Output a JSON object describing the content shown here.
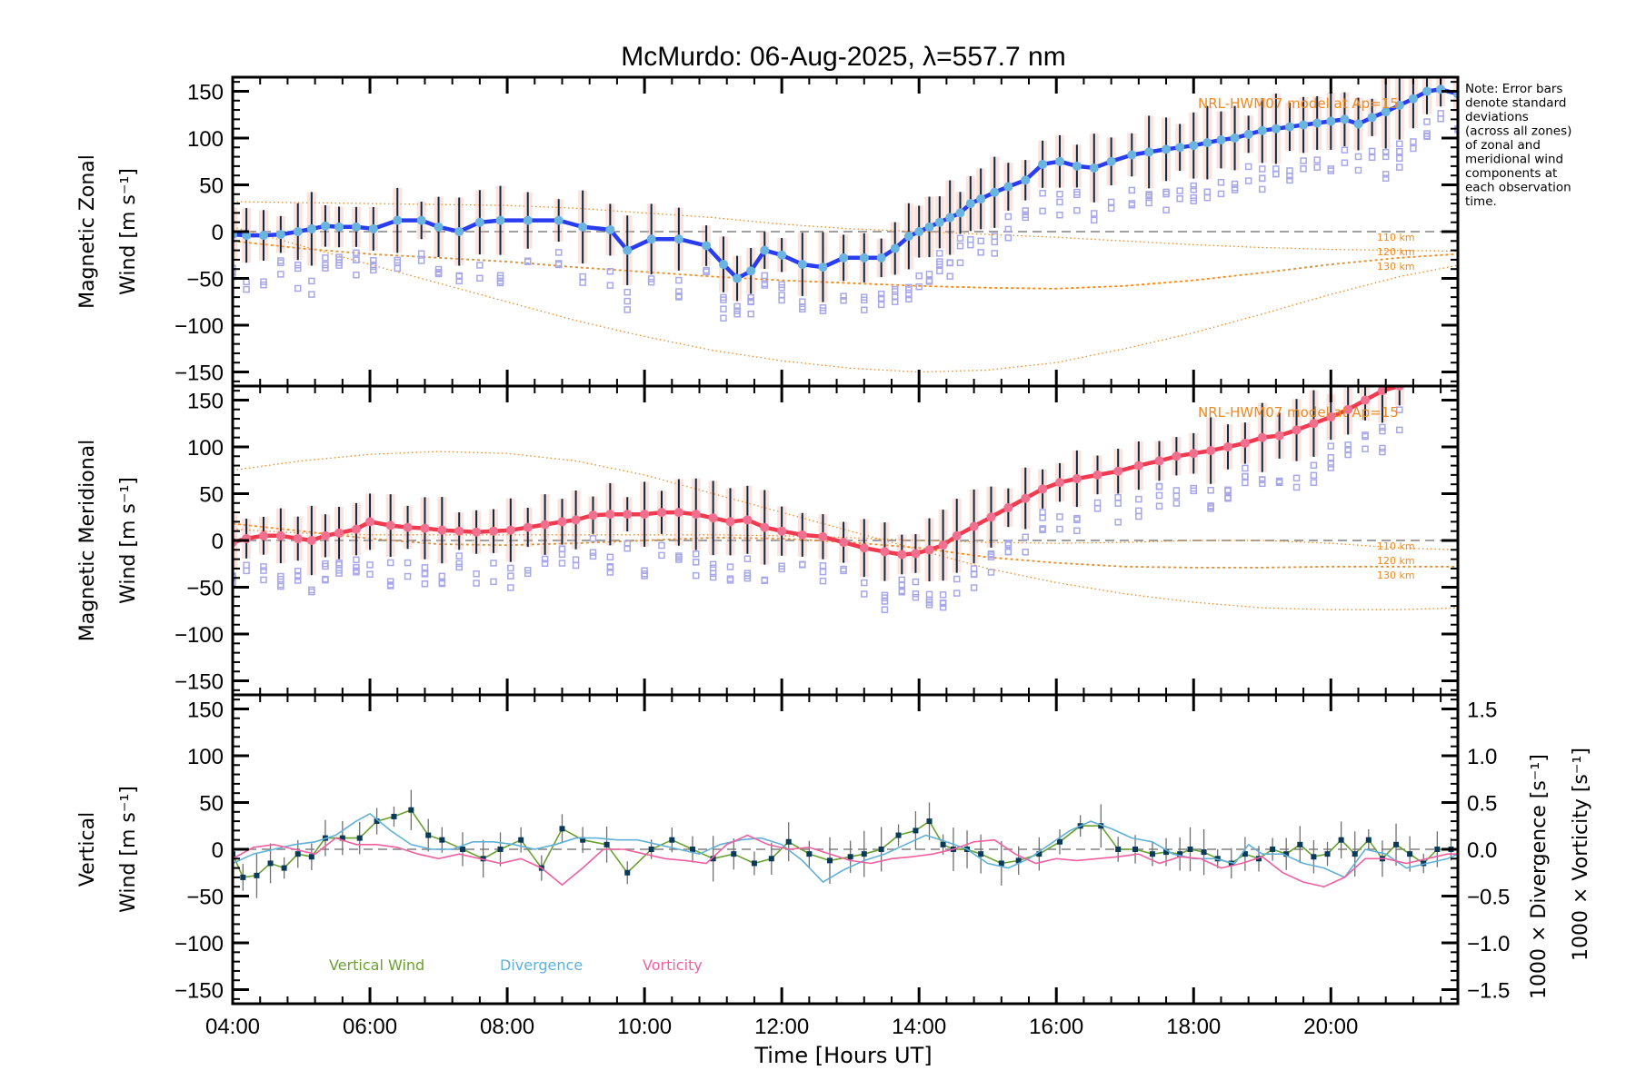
{
  "chart_data": {
    "type": "line",
    "title": "McMurdo: 06-Aug-2025, λ=557.7 nm",
    "xlabel": "Time [Hours UT]",
    "xlim": [
      4.0,
      21.85
    ],
    "xticks": [
      4,
      6,
      8,
      10,
      12,
      14,
      16,
      18,
      20
    ],
    "xtick_labels": [
      "04:00",
      "06:00",
      "08:00",
      "10:00",
      "12:00",
      "14:00",
      "16:00",
      "18:00",
      "20:00"
    ],
    "note": [
      "Note: Error bars",
      "denote standard",
      "deviations",
      "(across all zones)",
      "of zonal and",
      "meridional wind",
      "components at",
      "each observation",
      "time."
    ],
    "colors": {
      "zonal": "#2a3cf0",
      "zonal_marker": "#6ab4e0",
      "meridional": "#f03a50",
      "meridional_marker": "#f07090",
      "model": "#f08a20",
      "zone_points": "#a8a8e8",
      "errbar": "#0a2a40",
      "vertical": "#6aa030",
      "divergence": "#60b0d8",
      "vorticity": "#f060a0",
      "zero_line": "#808080"
    },
    "panels": [
      {
        "id": "zonal",
        "ylabel_line1": "Magnetic Zonal",
        "ylabel_line2": "Wind [m s⁻¹]",
        "ylim": [
          -165,
          165
        ],
        "yticks": [
          -150,
          -100,
          -50,
          0,
          50,
          100,
          150
        ],
        "ytick_labels": [
          "−150",
          "−100",
          "−50",
          "0",
          "50",
          "100",
          "150"
        ],
        "model_label": "NRL-HWM07 model at Ap=15",
        "model_altitudes": [
          "110 km",
          "120 km",
          "130 km"
        ],
        "model_curves": {
          "x": [
            4,
            5,
            6,
            7,
            8,
            9,
            10,
            11,
            12,
            13,
            14,
            15,
            16,
            17,
            18,
            19,
            20,
            21,
            21.85
          ],
          "110 km": [
            32,
            31,
            30,
            29,
            28,
            25,
            20,
            15,
            8,
            3,
            0,
            -3,
            -6,
            -10,
            -14,
            -17,
            -19,
            -20,
            -21
          ],
          "120 km": [
            -10,
            -18,
            -24,
            -28,
            -32,
            -38,
            -43,
            -48,
            -52,
            -55,
            -58,
            -60,
            -61,
            -58,
            -52,
            -44,
            -35,
            -28,
            -24
          ],
          "130 km": [
            5,
            -15,
            -35,
            -55,
            -75,
            -95,
            -112,
            -127,
            -138,
            -146,
            -150,
            -148,
            -140,
            -125,
            -108,
            -88,
            -67,
            -48,
            -36
          ]
        },
        "series": {
          "name": "Magnetic Zonal Wind",
          "x": [
            4.0,
            4.2,
            4.45,
            4.7,
            4.95,
            5.15,
            5.35,
            5.55,
            5.8,
            6.05,
            6.4,
            6.75,
            7.0,
            7.3,
            7.6,
            7.9,
            8.3,
            8.75,
            9.1,
            9.5,
            9.75,
            10.1,
            10.5,
            10.9,
            11.15,
            11.35,
            11.55,
            11.75,
            12.0,
            12.3,
            12.6,
            12.9,
            13.2,
            13.45,
            13.65,
            13.85,
            14.0,
            14.15,
            14.3,
            14.45,
            14.6,
            14.75,
            14.9,
            15.1,
            15.3,
            15.55,
            15.8,
            16.05,
            16.3,
            16.55,
            16.8,
            17.1,
            17.35,
            17.6,
            17.8,
            18.0,
            18.2,
            18.4,
            18.6,
            18.8,
            19.0,
            19.2,
            19.4,
            19.6,
            19.8,
            20.0,
            20.2,
            20.4,
            20.6,
            20.8,
            21.0,
            21.2,
            21.4,
            21.6,
            21.85
          ],
          "y": [
            -3,
            -4,
            -4,
            -3,
            0,
            3,
            6,
            5,
            5,
            3,
            12,
            12,
            5,
            0,
            10,
            12,
            12,
            12,
            5,
            2,
            -20,
            -8,
            -8,
            -15,
            -35,
            -50,
            -42,
            -20,
            -25,
            -35,
            -38,
            -28,
            -28,
            -28,
            -18,
            -5,
            0,
            5,
            10,
            15,
            20,
            30,
            35,
            42,
            48,
            55,
            72,
            75,
            70,
            68,
            75,
            82,
            85,
            88,
            90,
            92,
            95,
            98,
            100,
            104,
            108,
            110,
            112,
            114,
            116,
            118,
            120,
            115,
            122,
            128,
            135,
            142,
            150,
            152,
            147
          ]
        }
      },
      {
        "id": "meridional",
        "ylabel_line1": "Magnetic Meridional",
        "ylabel_line2": "Wind [m s⁻¹]",
        "ylim": [
          -165,
          165
        ],
        "yticks": [
          -150,
          -100,
          -50,
          0,
          50,
          100,
          150
        ],
        "ytick_labels": [
          "−150",
          "−100",
          "−50",
          "0",
          "50",
          "100",
          "150"
        ],
        "model_label": "NRL-HWM07 model at Ap=15",
        "model_altitudes": [
          "110 km",
          "120 km",
          "130 km"
        ],
        "model_curves": {
          "x": [
            4,
            5,
            6,
            7,
            8,
            9,
            10,
            11,
            12,
            13,
            14,
            15,
            16,
            17,
            18,
            19,
            20,
            21,
            21.85
          ],
          "110 km": [
            12,
            8,
            6,
            6,
            6,
            6,
            6,
            6,
            5,
            3,
            0,
            -2,
            -3,
            -2,
            0,
            0,
            -3,
            -8,
            -10
          ],
          "120 km": [
            18,
            10,
            2,
            -4,
            -5,
            -3,
            0,
            3,
            2,
            -2,
            -8,
            -18,
            -24,
            -28,
            -29,
            -29,
            -28,
            -28,
            -28
          ],
          "130 km": [
            75,
            85,
            92,
            95,
            93,
            85,
            70,
            50,
            30,
            10,
            -10,
            -30,
            -45,
            -57,
            -66,
            -72,
            -74,
            -74,
            -72
          ]
        },
        "series": {
          "name": "Magnetic Meridional Wind",
          "x": [
            4.0,
            4.2,
            4.45,
            4.7,
            4.95,
            5.15,
            5.35,
            5.55,
            5.8,
            6.0,
            6.3,
            6.55,
            6.8,
            7.05,
            7.3,
            7.55,
            7.8,
            8.05,
            8.3,
            8.55,
            8.8,
            9.0,
            9.25,
            9.5,
            9.75,
            10.0,
            10.25,
            10.5,
            10.75,
            11.0,
            11.25,
            11.5,
            11.75,
            12.0,
            12.3,
            12.6,
            12.9,
            13.2,
            13.5,
            13.75,
            13.95,
            14.15,
            14.35,
            14.55,
            14.8,
            15.05,
            15.3,
            15.55,
            15.8,
            16.05,
            16.3,
            16.6,
            16.9,
            17.2,
            17.5,
            17.75,
            18.0,
            18.25,
            18.5,
            18.75,
            19.0,
            19.25,
            19.5,
            19.75,
            20.0,
            20.25,
            20.5,
            20.75,
            21.0
          ],
          "y": [
            -2,
            2,
            5,
            5,
            2,
            0,
            5,
            8,
            12,
            20,
            16,
            14,
            13,
            11,
            10,
            9,
            10,
            11,
            14,
            17,
            20,
            22,
            27,
            28,
            28,
            28,
            30,
            30,
            28,
            24,
            20,
            22,
            14,
            10,
            6,
            4,
            -2,
            -8,
            -12,
            -15,
            -14,
            -10,
            -5,
            5,
            15,
            25,
            35,
            45,
            55,
            62,
            66,
            70,
            74,
            80,
            85,
            90,
            93,
            96,
            100,
            104,
            110,
            112,
            118,
            125,
            132,
            140,
            150,
            160,
            165
          ]
        }
      },
      {
        "id": "vertical",
        "ylabel_line1": "Vertical",
        "ylabel_line2": "Wind [m s⁻¹]",
        "ylim": [
          -165,
          165
        ],
        "yticks": [
          -150,
          -100,
          -50,
          0,
          50,
          100,
          150
        ],
        "ytick_labels": [
          "−150",
          "−100",
          "−50",
          "0",
          "50",
          "100",
          "150"
        ],
        "right_axis": {
          "ylim": [
            -1.65,
            1.65
          ],
          "yticks": [
            -1.5,
            -1.0,
            -0.5,
            0.0,
            0.5,
            1.0,
            1.5
          ],
          "ytick_labels": [
            "−1.5",
            "−1.0",
            "−0.5",
            "0.0",
            "0.5",
            "1.0",
            "1.5"
          ],
          "label_divergence": "1000 × Divergence [s⁻¹]",
          "label_vorticity": "1000 × Vorticity [s⁻¹]"
        },
        "legend": [
          "Vertical Wind",
          "Divergence",
          "Vorticity"
        ],
        "series": [
          {
            "name": "Vertical Wind",
            "axis": "left",
            "x": [
              4.0,
              4.15,
              4.35,
              4.55,
              4.75,
              4.95,
              5.15,
              5.35,
              5.6,
              5.85,
              6.1,
              6.35,
              6.6,
              6.85,
              7.05,
              7.35,
              7.65,
              7.9,
              8.2,
              8.5,
              8.8,
              9.1,
              9.45,
              9.75,
              10.1,
              10.4,
              10.7,
              11.0,
              11.3,
              11.6,
              11.85,
              12.1,
              12.4,
              12.7,
              13.0,
              13.2,
              13.45,
              13.7,
              13.95,
              14.15,
              14.35,
              14.5,
              14.7,
              14.9,
              15.2,
              15.45,
              15.75,
              16.05,
              16.35,
              16.65,
              16.9,
              17.15,
              17.4,
              17.6,
              17.8,
              17.95,
              18.15,
              18.35,
              18.55,
              18.75,
              18.95,
              19.15,
              19.35,
              19.55,
              19.75,
              19.95,
              20.15,
              20.35,
              20.55,
              20.75,
              20.95,
              21.15,
              21.35,
              21.55,
              21.75
            ],
            "y": [
              -5,
              -30,
              -28,
              -15,
              -20,
              -5,
              -8,
              12,
              12,
              12,
              30,
              35,
              42,
              15,
              10,
              0,
              -10,
              0,
              10,
              -20,
              22,
              10,
              5,
              -25,
              0,
              10,
              0,
              -10,
              -5,
              -15,
              -10,
              8,
              -5,
              -12,
              -8,
              -5,
              0,
              15,
              20,
              30,
              5,
              0,
              0,
              -5,
              -15,
              -12,
              -5,
              8,
              25,
              25,
              0,
              0,
              -5,
              -3,
              -5,
              0,
              -3,
              -10,
              -15,
              -5,
              -10,
              0,
              -5,
              5,
              -8,
              -5,
              10,
              -5,
              10,
              -10,
              5,
              -5,
              -15,
              0,
              0
            ]
          },
          {
            "name": "Divergence",
            "axis": "right",
            "x": [
              4.0,
              4.3,
              4.6,
              4.9,
              5.2,
              5.5,
              5.8,
              6.0,
              6.3,
              6.6,
              6.9,
              7.2,
              7.5,
              7.8,
              8.1,
              8.4,
              8.7,
              9.0,
              9.3,
              9.6,
              9.9,
              10.2,
              10.5,
              10.8,
              11.1,
              11.4,
              11.7,
              12.0,
              12.3,
              12.6,
              12.9,
              13.2,
              13.5,
              13.8,
              14.1,
              14.4,
              14.7,
              15.0,
              15.3,
              15.6,
              15.9,
              16.2,
              16.5,
              16.8,
              17.1,
              17.4,
              17.7,
              18.0,
              18.3,
              18.6,
              18.8,
              19.0,
              19.3,
              19.6,
              19.9,
              20.2,
              20.5,
              20.8,
              21.1,
              21.4,
              21.7,
              21.85
            ],
            "y": [
              -0.15,
              -0.05,
              0.0,
              0.05,
              0.08,
              0.15,
              0.3,
              0.38,
              0.2,
              0.05,
              0.0,
              0.0,
              0.08,
              0.08,
              0.05,
              0.0,
              0.05,
              0.12,
              0.12,
              0.1,
              0.1,
              0.05,
              0.0,
              -0.05,
              0.05,
              0.1,
              0.12,
              0.05,
              -0.12,
              -0.35,
              -0.22,
              -0.12,
              -0.05,
              0.05,
              0.15,
              0.08,
              0.0,
              -0.15,
              -0.2,
              -0.1,
              0.05,
              0.2,
              0.3,
              0.22,
              0.12,
              0.08,
              -0.05,
              -0.1,
              -0.1,
              -0.15,
              0.05,
              -0.05,
              -0.05,
              -0.15,
              -0.2,
              -0.3,
              0.0,
              -0.05,
              -0.2,
              -0.15,
              -0.1,
              -0.05
            ]
          },
          {
            "name": "Vorticity",
            "axis": "right",
            "x": [
              4.0,
              4.3,
              4.6,
              4.9,
              5.2,
              5.5,
              5.8,
              6.1,
              6.4,
              6.7,
              7.0,
              7.3,
              7.6,
              7.9,
              8.2,
              8.5,
              8.8,
              9.1,
              9.4,
              9.7,
              10.0,
              10.3,
              10.6,
              10.9,
              11.2,
              11.5,
              11.8,
              12.1,
              12.4,
              12.7,
              13.0,
              13.3,
              13.6,
              13.9,
              14.2,
              14.5,
              14.8,
              15.1,
              15.4,
              15.7,
              16.0,
              16.3,
              16.6,
              16.9,
              17.2,
              17.5,
              17.8,
              18.1,
              18.4,
              18.7,
              19.0,
              19.3,
              19.6,
              19.9,
              20.2,
              20.5,
              20.8,
              21.1,
              21.4,
              21.7,
              21.85
            ],
            "y": [
              -0.1,
              0.02,
              0.05,
              0.0,
              -0.05,
              0.12,
              0.05,
              0.05,
              0.02,
              -0.05,
              -0.1,
              -0.05,
              -0.1,
              -0.15,
              -0.1,
              -0.2,
              -0.38,
              -0.2,
              0.0,
              0.0,
              -0.05,
              -0.1,
              -0.12,
              -0.15,
              0.05,
              0.15,
              0.05,
              0.0,
              0.02,
              -0.05,
              -0.12,
              -0.15,
              -0.1,
              -0.08,
              -0.05,
              0.0,
              0.08,
              0.1,
              -0.05,
              -0.15,
              -0.1,
              -0.12,
              -0.1,
              -0.08,
              -0.05,
              -0.15,
              -0.08,
              -0.1,
              -0.2,
              -0.15,
              -0.08,
              -0.25,
              -0.35,
              -0.4,
              -0.3,
              -0.1,
              -0.1,
              -0.15,
              -0.1,
              -0.05,
              -0.05
            ]
          }
        ]
      }
    ]
  }
}
